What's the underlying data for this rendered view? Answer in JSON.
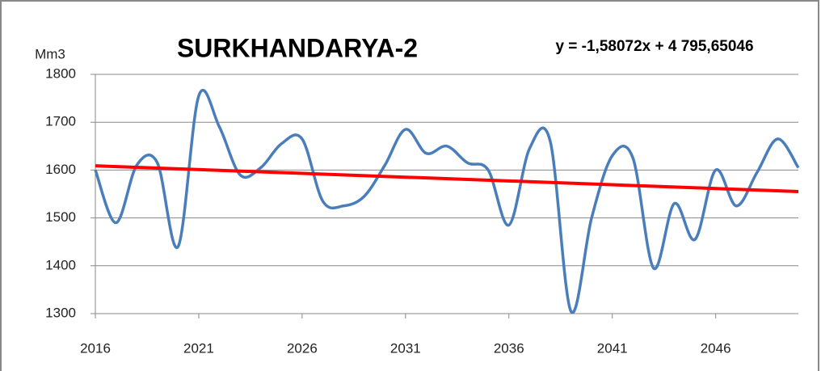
{
  "chart_data": {
    "type": "line",
    "title": "SURKHANDARYA-2",
    "annotation": "y = -1,58072x + 4 795,65046",
    "y_label": "Mm3",
    "x": [
      2016,
      2017,
      2018,
      2019,
      2020,
      2021,
      2022,
      2023,
      2024,
      2025,
      2026,
      2027,
      2028,
      2029,
      2030,
      2031,
      2032,
      2033,
      2034,
      2035,
      2036,
      2037,
      2038,
      2039,
      2040,
      2041,
      2042,
      2043,
      2044,
      2045,
      2046,
      2047,
      2048,
      2049,
      2050
    ],
    "series": [
      {
        "color": "#4a7ebb",
        "values": [
          1600,
          1490,
          1610,
          1615,
          1440,
          1755,
          1690,
          1590,
          1605,
          1655,
          1665,
          1535,
          1525,
          1545,
          1610,
          1685,
          1635,
          1650,
          1615,
          1600,
          1485,
          1645,
          1660,
          1305,
          1500,
          1630,
          1625,
          1395,
          1530,
          1455,
          1600,
          1525,
          1595,
          1665,
          1605
        ]
      }
    ],
    "trend": {
      "x": [
        2016,
        2050
      ],
      "values": [
        1608.9,
        1555.1
      ],
      "color": "#ff0000"
    },
    "xlim": [
      2016,
      2050
    ],
    "xticks": [
      2016,
      2021,
      2026,
      2031,
      2036,
      2041,
      2046
    ],
    "ylim": [
      1300,
      1800
    ],
    "yticks": [
      1300,
      1400,
      1500,
      1600,
      1700,
      1800
    ],
    "grid": true
  }
}
